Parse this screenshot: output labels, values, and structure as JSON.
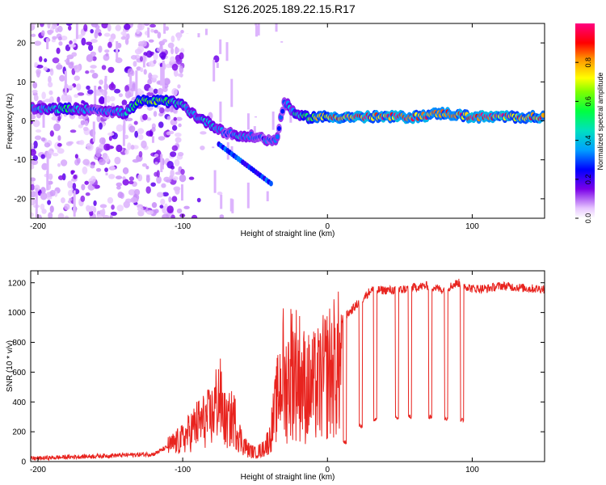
{
  "title": "S126.2025.189.22.15.R17",
  "chart_data": [
    {
      "type": "heatmap",
      "xlabel": "Height of straight line (km)",
      "ylabel": "Frequency (Hz)",
      "xlim": [
        -205,
        150
      ],
      "ylim": [
        -25,
        25
      ],
      "x_ticks": [
        "-200",
        "-100",
        "0",
        "100"
      ],
      "y_ticks": [
        "-20",
        "-10",
        "0",
        "10",
        "20"
      ],
      "colorbar": {
        "label": "Normalized spectral amplitude",
        "range": [
          0.0,
          1.0
        ],
        "ticks": [
          "0.0",
          "0.2",
          "0.4",
          "0.6",
          "0.8"
        ]
      },
      "ridge": {
        "description": "dominant frequency track vs height",
        "x": [
          -200,
          -180,
          -160,
          -140,
          -130,
          -110,
          -100,
          -90,
          -80,
          -70,
          -60,
          -50,
          -40,
          -35,
          -30,
          -20,
          -10,
          0,
          20,
          40,
          60,
          80,
          100,
          120,
          150
        ],
        "y": [
          3,
          3,
          3,
          2,
          5,
          5,
          4,
          1,
          -1,
          -3,
          -4,
          -4,
          -5,
          -5,
          5,
          1,
          1,
          1,
          1,
          1,
          1,
          2,
          1,
          1,
          1
        ],
        "amplitude": [
          0.4,
          0.5,
          0.3,
          0.4,
          0.6,
          0.6,
          0.4,
          0.4,
          0.4,
          0.3,
          0.4,
          0.3,
          0.3,
          0.3,
          0.3,
          0.5,
          0.7,
          0.8,
          0.9,
          0.9,
          0.9,
          0.8,
          0.9,
          0.9,
          0.8
        ]
      }
    },
    {
      "type": "line",
      "xlabel": "Height of straight line (km)",
      "ylabel": "SNR (10 * v/v)",
      "xlim": [
        -205,
        150
      ],
      "ylim": [
        0,
        1280
      ],
      "x_ticks": [
        "-200",
        "-100",
        "0",
        "100"
      ],
      "y_ticks": [
        "0",
        "200",
        "400",
        "600",
        "800",
        "1000",
        "1200"
      ],
      "series": [
        {
          "color": "#e8231e",
          "x": [
            -205,
            -180,
            -150,
            -120,
            -110,
            -100,
            -90,
            -80,
            -75,
            -70,
            -65,
            -60,
            -55,
            -50,
            -45,
            -40,
            -35,
            -30,
            -25,
            -20,
            -15,
            -10,
            -5,
            0,
            5,
            10,
            15,
            20,
            25,
            30,
            40,
            50,
            60,
            70,
            80,
            90,
            100,
            110,
            120,
            130,
            140,
            150
          ],
          "y": [
            20,
            30,
            40,
            50,
            100,
            150,
            250,
            300,
            450,
            250,
            300,
            150,
            80,
            60,
            80,
            150,
            400,
            650,
            900,
            850,
            700,
            700,
            750,
            850,
            900,
            950,
            1000,
            1050,
            1100,
            1150,
            1150,
            1150,
            1170,
            1180,
            1150,
            1200,
            1160,
            1160,
            1180,
            1170,
            1160,
            1160
          ]
        }
      ],
      "dropouts": [
        {
          "x": 12,
          "y": 130
        },
        {
          "x": 23,
          "y": 240
        },
        {
          "x": 33,
          "y": 280
        },
        {
          "x": 48,
          "y": 290
        },
        {
          "x": 57,
          "y": 300
        },
        {
          "x": 71,
          "y": 300
        },
        {
          "x": 82,
          "y": 290
        },
        {
          "x": 93,
          "y": 280
        }
      ]
    }
  ]
}
